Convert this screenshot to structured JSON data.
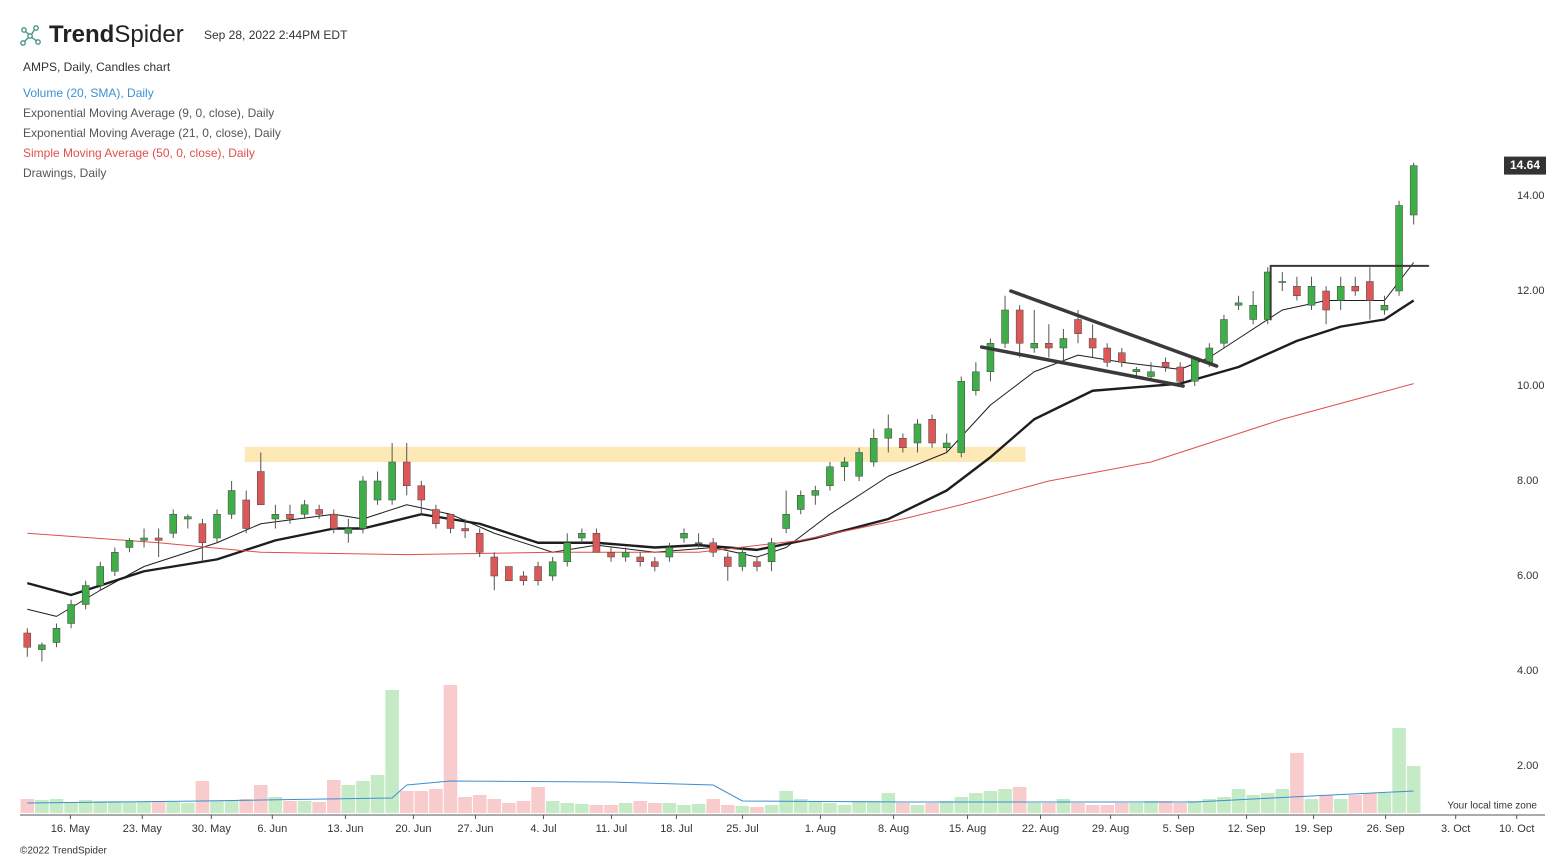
{
  "header": {
    "brand_1": "Trend",
    "brand_2": "Spider",
    "timestamp": "Sep 28, 2022 2:44PM EDT"
  },
  "footer": "©2022 TrendSpider",
  "chart_data": {
    "type": "candlestick",
    "title": "AMPS, Daily, Candles chart",
    "up_color": "#3fae49",
    "down_color": "#dc5858",
    "candles": [
      [
        4.8,
        4.9,
        4.3,
        4.5
      ],
      [
        4.45,
        4.6,
        4.2,
        4.55
      ],
      [
        4.6,
        5.0,
        4.5,
        4.9
      ],
      [
        5.0,
        5.5,
        4.9,
        5.4
      ],
      [
        5.4,
        5.9,
        5.3,
        5.8
      ],
      [
        5.8,
        6.3,
        5.7,
        6.2
      ],
      [
        6.1,
        6.6,
        6.0,
        6.5
      ],
      [
        6.6,
        6.8,
        6.5,
        6.75
      ],
      [
        6.75,
        7.0,
        6.6,
        6.8
      ],
      [
        6.8,
        7.0,
        6.4,
        6.75
      ],
      [
        6.9,
        7.4,
        6.8,
        7.3
      ],
      [
        7.2,
        7.3,
        7.0,
        7.25
      ],
      [
        7.1,
        7.2,
        6.3,
        6.7
      ],
      [
        6.8,
        7.4,
        6.7,
        7.3
      ],
      [
        7.3,
        8.0,
        7.2,
        7.8
      ],
      [
        7.6,
        7.8,
        6.9,
        7.0
      ],
      [
        8.2,
        8.6,
        7.5,
        7.5
      ],
      [
        7.2,
        7.5,
        7.0,
        7.3
      ],
      [
        7.3,
        7.5,
        7.1,
        7.2
      ],
      [
        7.3,
        7.6,
        7.2,
        7.5
      ],
      [
        7.4,
        7.5,
        7.2,
        7.3
      ],
      [
        7.3,
        7.4,
        6.9,
        7.0
      ],
      [
        6.9,
        7.2,
        6.7,
        7.0
      ],
      [
        7.0,
        8.1,
        6.9,
        8.0
      ],
      [
        7.6,
        8.2,
        7.5,
        8.0
      ],
      [
        7.6,
        8.8,
        7.5,
        8.4
      ],
      [
        8.4,
        8.8,
        7.7,
        7.9
      ],
      [
        7.9,
        8.0,
        7.3,
        7.6
      ],
      [
        7.4,
        7.5,
        7.0,
        7.1
      ],
      [
        7.3,
        7.3,
        6.9,
        7.0
      ],
      [
        7.0,
        7.2,
        6.8,
        6.95
      ],
      [
        6.9,
        7.0,
        6.4,
        6.5
      ],
      [
        6.4,
        6.5,
        5.7,
        6.0
      ],
      [
        6.2,
        6.2,
        5.9,
        5.9
      ],
      [
        6.0,
        6.1,
        5.8,
        5.9
      ],
      [
        6.2,
        6.3,
        5.8,
        5.9
      ],
      [
        6.0,
        6.4,
        5.9,
        6.3
      ],
      [
        6.3,
        6.9,
        6.2,
        6.7
      ],
      [
        6.8,
        7.0,
        6.7,
        6.9
      ],
      [
        6.9,
        7.0,
        6.5,
        6.5
      ],
      [
        6.5,
        6.6,
        6.3,
        6.4
      ],
      [
        6.4,
        6.6,
        6.3,
        6.5
      ],
      [
        6.4,
        6.5,
        6.2,
        6.3
      ],
      [
        6.3,
        6.4,
        6.1,
        6.2
      ],
      [
        6.4,
        6.7,
        6.3,
        6.6
      ],
      [
        6.8,
        7.0,
        6.7,
        6.9
      ],
      [
        6.7,
        6.9,
        6.6,
        6.7
      ],
      [
        6.7,
        6.8,
        6.4,
        6.5
      ],
      [
        6.4,
        6.5,
        5.9,
        6.2
      ],
      [
        6.2,
        6.6,
        6.1,
        6.5
      ],
      [
        6.3,
        6.4,
        6.1,
        6.2
      ],
      [
        6.3,
        6.8,
        6.1,
        6.7
      ],
      [
        7.0,
        7.8,
        6.9,
        7.3
      ],
      [
        7.4,
        7.8,
        7.3,
        7.7
      ],
      [
        7.7,
        7.9,
        7.5,
        7.8
      ],
      [
        7.9,
        8.4,
        7.8,
        8.3
      ],
      [
        8.3,
        8.5,
        8.0,
        8.4
      ],
      [
        8.1,
        8.7,
        8.0,
        8.6
      ],
      [
        8.4,
        9.1,
        8.3,
        8.9
      ],
      [
        8.9,
        9.4,
        8.6,
        9.1
      ],
      [
        8.9,
        9.0,
        8.6,
        8.7
      ],
      [
        8.8,
        9.3,
        8.6,
        9.2
      ],
      [
        9.3,
        9.4,
        8.7,
        8.8
      ],
      [
        8.7,
        9.0,
        8.6,
        8.8
      ],
      [
        8.6,
        10.2,
        8.5,
        10.1
      ],
      [
        9.9,
        10.5,
        9.8,
        10.3
      ],
      [
        10.3,
        11.0,
        10.1,
        10.9
      ],
      [
        10.9,
        11.9,
        10.8,
        11.6
      ],
      [
        11.6,
        11.7,
        10.6,
        10.9
      ],
      [
        10.8,
        11.6,
        10.7,
        10.9
      ],
      [
        10.9,
        11.3,
        10.6,
        10.8
      ],
      [
        10.8,
        11.2,
        10.5,
        11.0
      ],
      [
        11.4,
        11.6,
        10.9,
        11.1
      ],
      [
        11.0,
        11.3,
        10.6,
        10.8
      ],
      [
        10.8,
        10.9,
        10.4,
        10.5
      ],
      [
        10.7,
        10.8,
        10.4,
        10.5
      ],
      [
        10.3,
        10.4,
        10.2,
        10.35
      ],
      [
        10.2,
        10.5,
        10.1,
        10.3
      ],
      [
        10.5,
        10.6,
        10.3,
        10.4
      ],
      [
        10.4,
        10.5,
        10.0,
        10.1
      ],
      [
        10.1,
        10.6,
        10.0,
        10.6
      ],
      [
        10.5,
        10.9,
        10.4,
        10.8
      ],
      [
        10.9,
        11.5,
        10.8,
        11.4
      ],
      [
        11.7,
        11.9,
        11.6,
        11.75
      ],
      [
        11.4,
        12.0,
        11.3,
        11.7
      ],
      [
        11.4,
        12.5,
        11.3,
        12.4
      ],
      [
        12.2,
        12.4,
        12.0,
        12.2
      ],
      [
        12.1,
        12.3,
        11.8,
        11.9
      ],
      [
        11.7,
        12.3,
        11.6,
        12.1
      ],
      [
        12.0,
        12.1,
        11.3,
        11.6
      ],
      [
        11.8,
        12.3,
        11.6,
        12.1
      ],
      [
        12.1,
        12.3,
        11.9,
        12.0
      ],
      [
        12.2,
        12.5,
        11.4,
        11.8
      ],
      [
        11.6,
        11.9,
        11.5,
        11.7
      ],
      [
        12.0,
        13.9,
        11.9,
        13.8
      ],
      [
        13.6,
        14.7,
        13.4,
        14.64
      ]
    ],
    "volume": {
      "name": "Volume (20, SMA), Daily",
      "color": "#3d8fd1",
      "up_color": "#c4ebc6",
      "down_color": "#f8cccc",
      "ylim": [
        0,
        135
      ],
      "values": [
        14,
        13,
        14,
        11,
        13,
        12,
        12,
        11,
        11,
        12,
        11,
        10,
        32,
        12,
        12,
        14,
        28,
        16,
        12,
        12,
        11,
        33,
        28,
        32,
        38,
        123,
        22,
        22,
        24,
        128,
        16,
        18,
        14,
        10,
        12,
        26,
        12,
        10,
        9,
        8,
        8,
        10,
        12,
        10,
        10,
        8,
        9,
        14,
        8,
        7,
        6,
        8,
        22,
        14,
        12,
        10,
        8,
        12,
        12,
        20,
        10,
        8,
        10,
        12,
        16,
        20,
        22,
        24,
        26,
        10,
        10,
        14,
        10,
        8,
        8,
        10,
        10,
        12,
        12,
        10,
        12,
        14,
        16,
        24,
        18,
        20,
        24,
        60,
        14,
        18,
        14,
        18,
        20,
        20,
        85,
        47
      ],
      "sma_x": [
        0,
        12,
        25,
        26,
        29,
        40,
        47,
        49,
        60,
        70,
        80,
        84,
        88,
        95
      ],
      "sma": [
        10,
        12,
        15,
        28,
        32,
        31,
        28,
        12,
        11,
        11,
        11,
        14,
        17,
        22
      ]
    },
    "series": [
      {
        "name": "Exponential Moving Average (9, 0, close), Daily",
        "color": "#1e1e1e",
        "width": 1,
        "x": [
          0,
          2,
          5,
          8,
          13,
          16,
          21,
          23,
          26,
          29,
          32,
          36,
          39,
          43,
          47,
          50,
          52,
          55,
          59,
          63,
          66,
          69,
          72,
          75,
          79,
          81,
          83,
          86,
          89,
          93,
          95
        ],
        "values": [
          5.3,
          5.15,
          5.7,
          6.2,
          6.7,
          7.1,
          7.3,
          7.2,
          7.5,
          7.3,
          6.9,
          6.5,
          6.65,
          6.5,
          6.6,
          6.4,
          6.6,
          7.3,
          8.1,
          8.6,
          9.6,
          10.3,
          10.65,
          10.5,
          10.35,
          10.6,
          11.0,
          11.6,
          11.8,
          11.8,
          12.6
        ]
      },
      {
        "name": "Exponential Moving Average (21, 0, close), Daily",
        "color": "#1e1e1e",
        "width": 2.4,
        "x": [
          0,
          3,
          8,
          13,
          17,
          21,
          23,
          27,
          31,
          35,
          39,
          43,
          46,
          50,
          54,
          59,
          63,
          66,
          69,
          73,
          79,
          83,
          87,
          90,
          93,
          95
        ],
        "values": [
          5.85,
          5.6,
          6.1,
          6.35,
          6.75,
          7.0,
          7.0,
          7.3,
          7.1,
          6.7,
          6.7,
          6.6,
          6.65,
          6.55,
          6.8,
          7.2,
          7.8,
          8.5,
          9.3,
          9.9,
          10.05,
          10.4,
          10.95,
          11.25,
          11.4,
          11.8
        ]
      },
      {
        "name": "Simple Moving Average (50, 0, close), Daily",
        "color": "#e0504a",
        "width": 1,
        "x": [
          0,
          9,
          16,
          26,
          36,
          46,
          53,
          60,
          64,
          70,
          77,
          81,
          86,
          92,
          95
        ],
        "values": [
          6.9,
          6.7,
          6.5,
          6.45,
          6.5,
          6.5,
          6.75,
          7.2,
          7.5,
          8.0,
          8.4,
          8.8,
          9.3,
          9.8,
          10.05
        ]
      }
    ],
    "drawings": {
      "name": "Drawings, Daily",
      "color": "#3a3a3a",
      "zone": {
        "x": [
          14.9,
          68.4
        ],
        "y": [
          8.4,
          8.72
        ],
        "color": "#fde9b5"
      },
      "lines": [
        {
          "x": [
            67.4,
            81.5
          ],
          "y": [
            12.0,
            10.42
          ]
        },
        {
          "x": [
            65.4,
            79.2
          ],
          "y": [
            10.82,
            10.0
          ]
        },
        {
          "x": [
            85.2,
            96.0
          ],
          "y": [
            12.53,
            12.53
          ]
        },
        {
          "x": [
            85.2,
            85.2
          ],
          "y": [
            12.53,
            11.4
          ]
        }
      ]
    },
    "xlim": [
      -0.5,
      104
    ],
    "ylim": [
      1,
      14.8
    ],
    "yticks": [
      {
        "value": 2,
        "label": "2.00"
      },
      {
        "value": 4,
        "label": "4.00"
      },
      {
        "value": 6,
        "label": "6.00"
      },
      {
        "value": 8,
        "label": "8.00"
      },
      {
        "value": 10,
        "label": "10.00"
      },
      {
        "value": 12,
        "label": "12.00"
      },
      {
        "value": 14,
        "label": "14.00"
      }
    ],
    "xticks": [
      {
        "value": 2.95,
        "label": "16. May"
      },
      {
        "value": 7.88,
        "label": "23. May"
      },
      {
        "value": 12.61,
        "label": "30. May"
      },
      {
        "value": 16.79,
        "label": "6. Jun"
      },
      {
        "value": 21.8,
        "label": "13. Jun"
      },
      {
        "value": 26.46,
        "label": "20. Jun"
      },
      {
        "value": 30.71,
        "label": "27. Jun"
      },
      {
        "value": 35.37,
        "label": "4. Jul"
      },
      {
        "value": 40.03,
        "label": "11. Jul"
      },
      {
        "value": 44.48,
        "label": "18. Jul"
      },
      {
        "value": 49.01,
        "label": "25. Jul"
      },
      {
        "value": 54.35,
        "label": "1. Aug"
      },
      {
        "value": 59.36,
        "label": "8. Aug"
      },
      {
        "value": 64.43,
        "label": "15. Aug"
      },
      {
        "value": 69.43,
        "label": "22. Aug"
      },
      {
        "value": 74.23,
        "label": "29. Aug"
      },
      {
        "value": 78.89,
        "label": "5. Sep"
      },
      {
        "value": 83.55,
        "label": "12. Sep"
      },
      {
        "value": 88.14,
        "label": "19. Sep"
      },
      {
        "value": 93.08,
        "label": "26. Sep"
      },
      {
        "value": 97.88,
        "label": "3. Oct"
      },
      {
        "value": 102.06,
        "label": "10. Oct"
      }
    ],
    "time_zone_note": "Your local time zone"
  }
}
